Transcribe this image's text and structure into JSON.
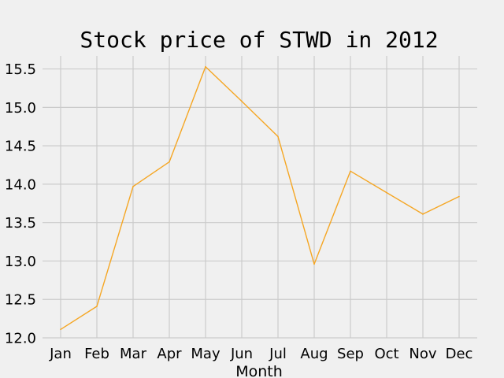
{
  "chart_data": {
    "type": "line",
    "title": "Stock price of STWD in 2012",
    "xlabel": "Month",
    "ylabel": "",
    "categories": [
      "Jan",
      "Feb",
      "Mar",
      "Apr",
      "May",
      "Jun",
      "Jul",
      "Aug",
      "Sep",
      "Oct",
      "Nov",
      "Dec"
    ],
    "series": [
      {
        "values": [
          12.11,
          12.41,
          13.97,
          14.29,
          15.53,
          15.08,
          14.62,
          12.96,
          14.17,
          13.89,
          13.61,
          13.84
        ],
        "color": "#f5a623"
      }
    ],
    "ylim": [
      12.0,
      15.67
    ],
    "yticks": [
      12.0,
      12.5,
      13.0,
      13.5,
      14.0,
      14.5,
      15.0,
      15.5
    ],
    "ytick_labels": [
      "12.0",
      "12.5",
      "13.0",
      "13.5",
      "14.0",
      "14.5",
      "15.0",
      "15.5"
    ],
    "grid": true,
    "grid_color": "#cbcbcb",
    "background_color": "#f0f0f0"
  }
}
